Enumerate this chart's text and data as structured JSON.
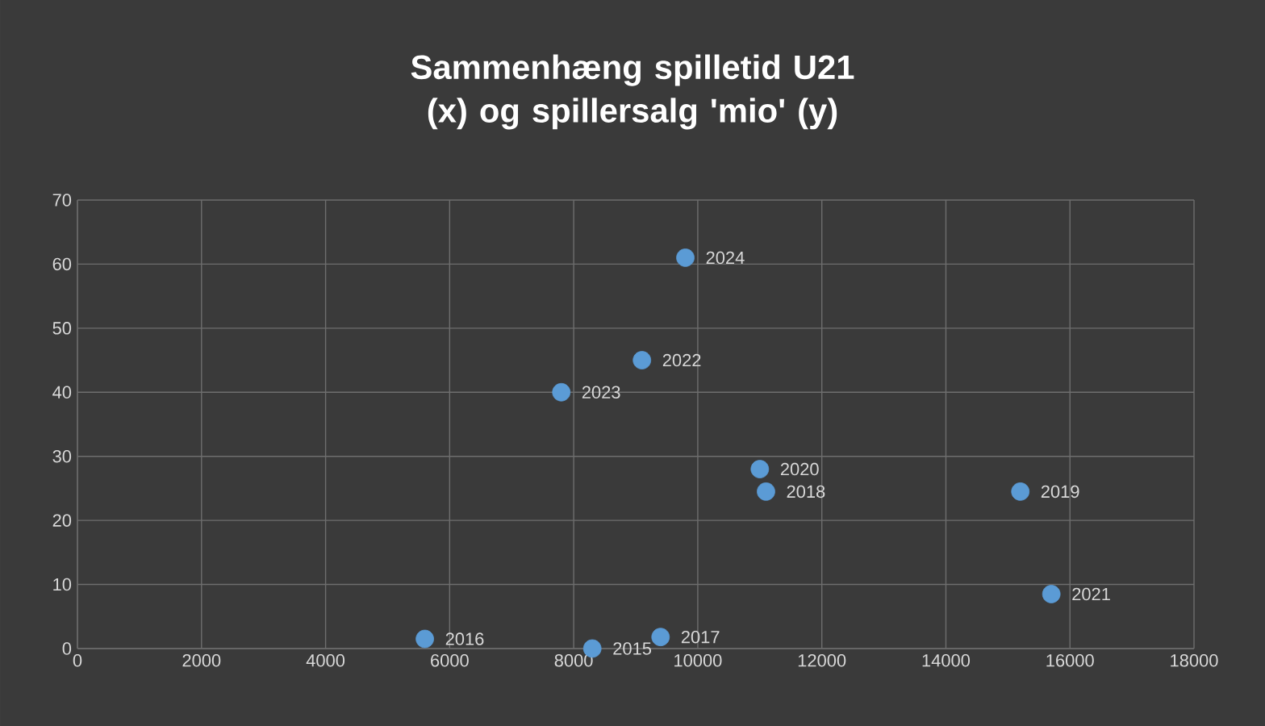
{
  "chart_data": {
    "type": "scatter",
    "title": "Sammenhæng spilletid U21 (x) og spillersalg 'mio' (y)",
    "x": [
      9800,
      9100,
      7800,
      11000,
      11100,
      15200,
      15700,
      5600,
      8300,
      9400
    ],
    "series": [
      {
        "color": "#5b9bd5",
        "values": [
          61,
          45,
          40,
          28,
          24.5,
          24.5,
          8.5,
          1.5,
          0,
          1.8
        ]
      }
    ],
    "xlim": [
      0,
      18000
    ],
    "xticks": [
      0,
      2000,
      4000,
      6000,
      8000,
      10000,
      12000,
      14000,
      16000,
      18000
    ],
    "ylim": [
      0,
      70
    ],
    "yticks": [
      0,
      10,
      20,
      30,
      40,
      50,
      60,
      70
    ],
    "grid": true,
    "marker": "circle",
    "annotations": [
      {
        "text": "2024",
        "x": 9800,
        "y": 61
      },
      {
        "text": "2022",
        "x": 9100,
        "y": 45
      },
      {
        "text": "2023",
        "x": 7800,
        "y": 40
      },
      {
        "text": "2020",
        "x": 11000,
        "y": 28
      },
      {
        "text": "2018",
        "x": 11100,
        "y": 24.5
      },
      {
        "text": "2019",
        "x": 15200,
        "y": 24.5
      },
      {
        "text": "2021",
        "x": 15700,
        "y": 8.5
      },
      {
        "text": "2016",
        "x": 5600,
        "y": 1.5
      },
      {
        "text": "2015",
        "x": 8300,
        "y": 0
      },
      {
        "text": "2017",
        "x": 9400,
        "y": 1.8
      }
    ]
  }
}
